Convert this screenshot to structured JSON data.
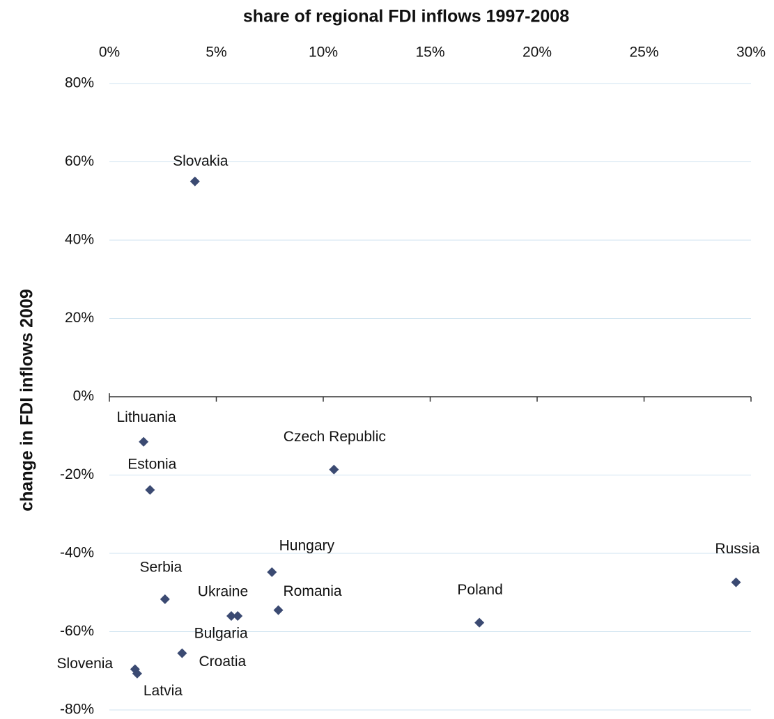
{
  "chart_data": {
    "type": "scatter",
    "title": "share of regional FDI inflows 1997-2008",
    "y_label": "change in FDI inflows 2009",
    "color": "#3b4a72",
    "grid": true,
    "labels": [
      "Slovakia",
      "Lithuania",
      "Estonia",
      "Czech Republic",
      "Hungary",
      "Serbia",
      "Ukraine",
      "Bulgaria",
      "Romania",
      "Poland",
      "Russia",
      "Croatia",
      "Slovenia",
      "Latvia"
    ],
    "x": [
      4.0,
      1.6,
      1.9,
      10.5,
      7.6,
      2.6,
      5.7,
      6.0,
      7.9,
      17.3,
      29.3,
      3.4,
      1.2,
      1.3
    ],
    "values": [
      55,
      -11.5,
      -23.8,
      -18.6,
      -44.8,
      -51.7,
      -56,
      -56,
      -54.5,
      -57.7,
      -47.4,
      -65.5,
      -69.6,
      -70.7
    ],
    "xlim": [
      0,
      30
    ],
    "xticks": [
      {
        "value": 0,
        "label": "0%"
      },
      {
        "value": 5,
        "label": "5%"
      },
      {
        "value": 10,
        "label": "10%"
      },
      {
        "value": 15,
        "label": "15%"
      },
      {
        "value": 20,
        "label": "20%"
      },
      {
        "value": 25,
        "label": "25%"
      },
      {
        "value": 30,
        "label": "30%"
      }
    ],
    "ylim": [
      -80,
      80
    ],
    "yticks": [
      {
        "value": 80,
        "label": "80%"
      },
      {
        "value": 60,
        "label": "60%"
      },
      {
        "value": 40,
        "label": "40%"
      },
      {
        "value": 20,
        "label": "20%"
      },
      {
        "value": 0,
        "label": "0%"
      },
      {
        "value": -20,
        "label": "-20%"
      },
      {
        "value": -40,
        "label": "-40%"
      },
      {
        "value": -60,
        "label": "-60%"
      },
      {
        "value": -80,
        "label": "-80%"
      }
    ]
  }
}
